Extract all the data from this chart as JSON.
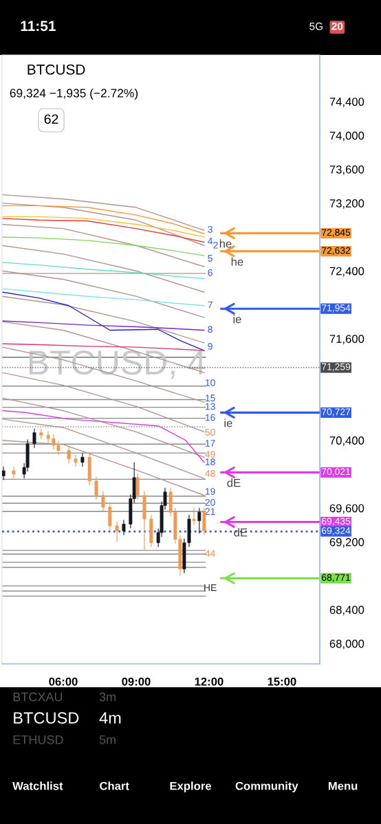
{
  "chart_data": {
    "type": "candlestick",
    "title": "BTCUSD",
    "subtitle": "69,324 −1,935 (−2.72%)",
    "x": [
      3.54,
      3.96,
      4.39,
      4.53,
      4.81,
      5.09,
      5.38,
      5.6,
      5.8,
      6.23,
      6.51,
      6.79,
      7.08,
      7.36,
      7.64,
      7.92,
      8.21,
      8.49,
      8.77,
      8.92,
      9.06,
      9.34,
      9.62,
      9.91,
      10.05,
      10.19,
      10.42,
      10.61,
      10.81,
      10.98,
      11.18,
      11.38,
      11.6,
      11.8
    ],
    "ohlc": [
      [
        69980,
        70090,
        69930,
        70040
      ],
      [
        70040,
        70090,
        69950,
        70000
      ],
      [
        70000,
        70130,
        69950,
        70080
      ],
      [
        70080,
        70410,
        70030,
        70360
      ],
      [
        70360,
        70540,
        70310,
        70490
      ],
      [
        70490,
        70540,
        70410,
        70460
      ],
      [
        70460,
        70510,
        70370,
        70420
      ],
      [
        70420,
        70470,
        70290,
        70340
      ],
      [
        70340,
        70390,
        70230,
        70280
      ],
      [
        70280,
        70330,
        70130,
        70180
      ],
      [
        70180,
        70230,
        70090,
        70140
      ],
      [
        70140,
        70250,
        70090,
        70200
      ],
      [
        70200,
        70250,
        69870,
        69920
      ],
      [
        69920,
        69970,
        69700,
        69750
      ],
      [
        69750,
        69800,
        69560,
        69610
      ],
      [
        69610,
        69660,
        69340,
        69390
      ],
      [
        69390,
        69440,
        69200,
        69330
      ],
      [
        69330,
        69460,
        69280,
        69410
      ],
      [
        69410,
        69760,
        69360,
        69710
      ],
      [
        69710,
        70140,
        69660,
        69960
      ],
      [
        69960,
        70010,
        69700,
        69750
      ],
      [
        69750,
        69800,
        69100,
        69470
      ],
      [
        69470,
        69520,
        69140,
        69190
      ],
      [
        69190,
        69360,
        69140,
        69310
      ],
      [
        69310,
        69680,
        69260,
        69630
      ],
      [
        69630,
        69840,
        69580,
        69790
      ],
      [
        69790,
        69840,
        69500,
        69550
      ],
      [
        69550,
        69600,
        69180,
        69230
      ],
      [
        69230,
        69280,
        68800,
        68880
      ],
      [
        68880,
        69240,
        68830,
        69190
      ],
      [
        69190,
        69520,
        69140,
        69470
      ],
      [
        69470,
        69600,
        69400,
        69450
      ],
      [
        69450,
        69600,
        69300,
        69550
      ],
      [
        69550,
        69600,
        69280,
        69330
      ]
    ],
    "colors": [
      "#131722",
      "#f09a50",
      "#131722",
      "#131722",
      "#131722",
      "#f09a50",
      "#f09a50",
      "#f09a50",
      "#f09a50",
      "#f09a50",
      "#f09a50",
      "#131722",
      "#f09a50",
      "#f09a50",
      "#f09a50",
      "#f09a50",
      "#f09a50",
      "#131722",
      "#131722",
      "#131722",
      "#f09a50",
      "#f09a50",
      "#f09a50",
      "#131722",
      "#131722",
      "#131722",
      "#f09a50",
      "#f09a50",
      "#f09a50",
      "#131722",
      "#131722",
      "#f09a50",
      "#131722",
      "#f09a50"
    ],
    "series": [
      {
        "type": "line",
        "color": "#b5928c",
        "x": [
          3.48,
          6,
          9,
          11.8
        ],
        "values": [
          73300,
          73250,
          73150,
          72880
        ]
      },
      {
        "type": "line",
        "color": "#b5928c",
        "x": [
          3.48,
          6,
          9,
          11.8
        ],
        "values": [
          73200,
          73150,
          73000,
          72700
        ]
      },
      {
        "type": "line",
        "color": "#b5928c",
        "x": [
          3.48,
          6,
          9,
          11.8
        ],
        "values": [
          72950,
          72900,
          72700,
          72450
        ]
      },
      {
        "type": "line",
        "color": "#b5928c",
        "x": [
          3.48,
          6,
          9,
          11.8
        ],
        "values": [
          72700,
          72600,
          72400,
          72150
        ]
      },
      {
        "type": "line",
        "color": "#b5928c",
        "x": [
          3.48,
          6,
          9,
          11.8
        ],
        "values": [
          72400,
          72300,
          72100,
          71850
        ]
      },
      {
        "type": "line",
        "color": "#b5928c",
        "x": [
          3.48,
          6,
          9,
          11.8
        ],
        "values": [
          72100,
          72000,
          71800,
          71550
        ]
      },
      {
        "type": "line",
        "color": "#b5928c",
        "x": [
          3.48,
          6,
          9,
          11.8
        ],
        "values": [
          71800,
          71700,
          71450,
          71200
        ]
      },
      {
        "type": "line",
        "color": "#b5928c",
        "x": [
          3.48,
          6,
          9,
          11.8
        ],
        "values": [
          71500,
          71350,
          71100,
          70850
        ]
      },
      {
        "type": "line",
        "color": "#b5928c",
        "x": [
          3.48,
          6,
          9,
          11.8
        ],
        "values": [
          71200,
          71050,
          70800,
          70500
        ]
      },
      {
        "type": "line",
        "color": "#b5928c",
        "x": [
          3.48,
          6,
          9,
          11.8
        ],
        "values": [
          70900,
          70750,
          70500,
          70200
        ]
      },
      {
        "type": "line",
        "color": "#b5928c",
        "x": [
          3.48,
          6,
          9,
          11.8
        ],
        "values": [
          70650,
          70550,
          70250,
          69950
        ]
      },
      {
        "type": "line",
        "color": "#b5928c",
        "x": [
          3.48,
          6,
          9,
          11.8
        ],
        "values": [
          70400,
          70350,
          70050,
          69750
        ]
      },
      {
        "type": "line",
        "color": "#f59a35",
        "x": [
          3.48,
          5,
          7,
          9,
          10.5,
          11.8
        ],
        "values": [
          73170,
          73170,
          73150,
          73060,
          72960,
          72840
        ]
      },
      {
        "type": "line",
        "color": "#f2c12e",
        "x": [
          3.48,
          5,
          7,
          9,
          10.5,
          11.8
        ],
        "values": [
          73040,
          73040,
          73020,
          72950,
          72880,
          72800
        ]
      },
      {
        "type": "line",
        "color": "#e53935",
        "x": [
          3.48,
          5,
          7,
          9,
          10.5,
          11.8
        ],
        "values": [
          73020,
          73000,
          72990,
          72900,
          72820,
          72740
        ]
      },
      {
        "type": "line",
        "color": "#7ed957",
        "x": [
          3.48,
          5,
          7,
          9,
          10.5,
          11.8
        ],
        "values": [
          72800,
          72790,
          72760,
          72700,
          72640,
          72580
        ]
      },
      {
        "type": "line",
        "color": "#5ee0c8",
        "x": [
          3.48,
          5,
          7,
          9,
          10.5,
          11.8
        ],
        "values": [
          72500,
          72470,
          72420,
          72380,
          72340,
          72310
        ]
      },
      {
        "type": "line",
        "color": "#7fe3e8",
        "x": [
          3.48,
          5,
          7,
          9,
          10.5,
          11.8
        ],
        "values": [
          72190,
          72150,
          72100,
          72060,
          72020,
          71990
        ]
      },
      {
        "type": "line",
        "color": "#1e22c8",
        "x": [
          3.48,
          5,
          6.23,
          7.92,
          9.9,
          10.8,
          11.8
        ],
        "values": [
          72150,
          72080,
          71990,
          71700,
          71710,
          71580,
          71460
        ]
      },
      {
        "type": "line",
        "color": "#7b1fd0",
        "x": [
          3.48,
          5,
          7,
          9,
          10.5,
          11.8
        ],
        "values": [
          71810,
          71790,
          71760,
          71740,
          71720,
          71700
        ]
      },
      {
        "type": "line",
        "color": "#e0306a",
        "x": [
          3.48,
          5,
          7,
          9,
          10.5,
          11.8
        ],
        "values": [
          71540,
          71530,
          71510,
          71500,
          71480,
          71460
        ]
      },
      {
        "type": "line",
        "color": "#d63ce0",
        "x": [
          3.48,
          4.39,
          5.09,
          6.23,
          9.91,
          11.04,
          11.8
        ],
        "values": [
          70750,
          70730,
          70700,
          70650,
          70570,
          70400,
          70140
        ]
      }
    ],
    "xlim": [
      3.48,
      16.56
    ],
    "ylim": [
      67760,
      74950
    ],
    "xticks": [
      {
        "value": 6,
        "label": "06:00"
      },
      {
        "value": 9,
        "label": "09:00"
      },
      {
        "value": 12,
        "label": "12:00"
      },
      {
        "value": 15,
        "label": "15:00"
      }
    ],
    "yticks": [
      {
        "value": 68000,
        "label": "68,000"
      },
      {
        "value": 68400,
        "label": "68,400"
      },
      {
        "value": 69200,
        "label": "69,200"
      },
      {
        "value": 69600,
        "label": "69,600"
      },
      {
        "value": 70400,
        "label": "70,400"
      },
      {
        "value": 71600,
        "label": "71,600"
      },
      {
        "value": 72400,
        "label": "72,400"
      },
      {
        "value": 73200,
        "label": "73,200"
      },
      {
        "value": 73600,
        "label": "73,600"
      },
      {
        "value": 74000,
        "label": "74,000"
      },
      {
        "value": 74400,
        "label": "74,400"
      }
    ],
    "ref_lines": [
      {
        "axis": "y",
        "value": 71380,
        "color": "#555555",
        "line_style": "solid"
      },
      {
        "axis": "y",
        "value": 71040,
        "color": "#8a8a8a",
        "line_style": "solid"
      },
      {
        "axis": "y",
        "value": 70880,
        "color": "#8a8a8a",
        "line_style": "solid"
      },
      {
        "axis": "y",
        "value": 70560,
        "color": "#888888",
        "line_style": "dotted"
      },
      {
        "axis": "y",
        "value": 70250,
        "color": "#8a8a8a",
        "line_style": "solid"
      },
      {
        "axis": "y",
        "value": 69940,
        "color": "#8a8a8a",
        "line_style": "solid"
      },
      {
        "axis": "y",
        "value": 69740,
        "color": "#8a8a8a",
        "line_style": "solid"
      },
      {
        "axis": "y",
        "value": 69560,
        "color": "#8a8a8a",
        "line_style": "solid"
      },
      {
        "axis": "y",
        "value": 69100,
        "color": "#8a8a8a",
        "line_style": "solid"
      },
      {
        "axis": "y",
        "value": 68960,
        "color": "#8a8a8a",
        "line_style": "solid"
      },
      {
        "axis": "y",
        "value": 68900,
        "color": "#8a8a8a",
        "line_style": "solid"
      },
      {
        "axis": "y",
        "value": 68680,
        "color": "#8a8a8a",
        "line_style": "solid"
      },
      {
        "axis": "y",
        "value": 68620,
        "color": "#8a8a8a",
        "line_style": "solid"
      },
      {
        "axis": "y",
        "value": 68560,
        "color": "#8a8a8a",
        "line_style": "solid"
      },
      {
        "axis": "y",
        "value": 72370,
        "color": "#b5928c",
        "line_style": "solid"
      },
      {
        "axis": "y",
        "value": 70790,
        "color": "#8a8a8a",
        "line_style": "solid"
      },
      {
        "axis": "y",
        "value": 70660,
        "color": "#8a8a8a",
        "line_style": "solid"
      },
      {
        "axis": "y",
        "value": 70355,
        "color": "#8a8a8a",
        "line_style": "solid"
      },
      {
        "axis": "y",
        "value": 69657,
        "color": "#8a8a8a",
        "line_style": "solid"
      },
      {
        "axis": "y",
        "value": 69056,
        "color": "#8a8a8a",
        "line_style": "solid"
      },
      {
        "axis": "y",
        "value": 72845,
        "label": "72,845",
        "color": "#f59a35",
        "line_style": "solid"
      },
      {
        "axis": "y",
        "value": 72632,
        "label": "72,632",
        "color": "#f59a35",
        "line_style": "solid"
      },
      {
        "axis": "y",
        "value": 71954,
        "label": "71,954",
        "color": "#2e5ce6",
        "line_style": "solid"
      },
      {
        "axis": "y",
        "value": 71259,
        "label": "71,259",
        "color": "#4a4a4a",
        "line_style": "dotted"
      },
      {
        "axis": "y",
        "value": 70727,
        "label": "70,727",
        "color": "#2e5ce6",
        "line_style": "solid"
      },
      {
        "axis": "y",
        "value": 70021,
        "label": "70,021",
        "color": "#e03ce6",
        "line_style": "solid"
      },
      {
        "axis": "y",
        "value": 69435,
        "label": "69,435",
        "color": "#e03ce6",
        "line_style": "solid"
      },
      {
        "axis": "y",
        "value": 69324,
        "label": "69,324",
        "color": "#2e5ce6",
        "line_style": "dotted"
      },
      {
        "axis": "y",
        "value": 68771,
        "label": "68,771",
        "color": "#7be04a",
        "line_style": "solid"
      }
    ],
    "annotations": [
      "BTCUSD, 4",
      "62",
      "11:51",
      "5G",
      "20",
      "BTCXAU",
      "3m",
      "BTCUSD",
      "4m",
      "ETHUSD",
      "5m",
      "Watchlist",
      "Chart",
      "Explore",
      "Community",
      "Menu",
      "3",
      "4",
      "2",
      "5",
      "6",
      "7",
      "8",
      "9",
      "10",
      "15",
      "13",
      "16",
      "50",
      "17",
      "49",
      "18",
      "48",
      "19",
      "20",
      "21",
      "44",
      "HE",
      {
        "text": "he",
        "x": 12.68,
        "y": 72845
      },
      {
        "text": "he",
        "x": 13.16,
        "y": 72632
      },
      {
        "text": "ie",
        "x": 13.16,
        "y": 71954
      },
      {
        "text": "ie",
        "x": 12.79,
        "y": 70727
      },
      {
        "text": "dE",
        "x": 13.02,
        "y": 70021
      },
      {
        "text": "dE",
        "x": 13.3,
        "y": 69435
      }
    ]
  }
}
